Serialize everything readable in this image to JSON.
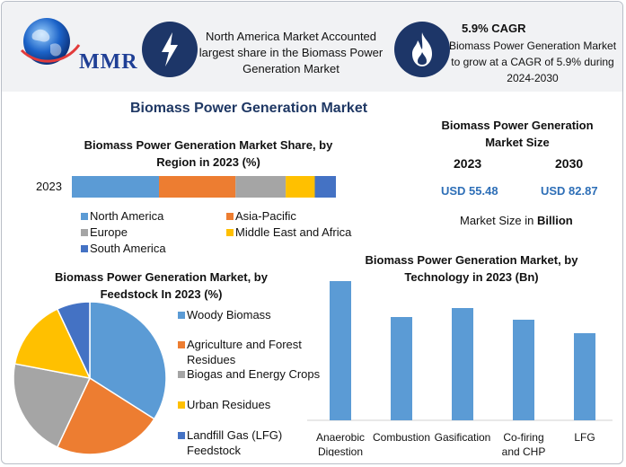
{
  "header": {
    "logo_text": "MMR",
    "highlight_na": "North America Market Accounted largest share in the Biomass Power Generation Market",
    "cagr_title": "5.9% CAGR",
    "cagr_text": "Biomass Power Generation Market to grow at a CAGR of 5.9% during 2024-2030",
    "icons": [
      "globe-icon",
      "lightning-bolt-icon",
      "flame-icon"
    ]
  },
  "main_title": "Biomass Power Generation Market",
  "market_size": {
    "title": "Biomass Power Generation Market Size",
    "year_a": "2023",
    "year_b": "2030",
    "value_a": "USD 55.48",
    "value_b": "USD 82.87",
    "unit_prefix": "Market Size in",
    "unit_bold": "Billion",
    "value_color": "#2e6fb7"
  },
  "chart_data": [
    {
      "type": "bar",
      "orientation": "horizontal-stacked",
      "title": "Biomass Power Generation Market Share, by Region in 2023 (%)",
      "categories": [
        "2023"
      ],
      "series": [
        {
          "name": "North America",
          "values": [
            33
          ],
          "color": "#5b9bd5"
        },
        {
          "name": "Asia-Pacific",
          "values": [
            29
          ],
          "color": "#ed7d31"
        },
        {
          "name": "Europe",
          "values": [
            19
          ],
          "color": "#a5a5a5"
        },
        {
          "name": "Middle East and Africa",
          "values": [
            11
          ],
          "color": "#ffc000"
        },
        {
          "name": "South America",
          "values": [
            8
          ],
          "color": "#4472c4"
        }
      ],
      "legend": "bottom"
    },
    {
      "type": "pie",
      "title": "Biomass Power Generation Market, by Feedstock In 2023 (%)",
      "labels": [
        "Woody Biomass",
        "Agriculture and Forest Residues",
        "Biogas and Energy Crops",
        "Urban Residues",
        "Landfill Gas (LFG) Feedstock"
      ],
      "values": [
        34,
        23,
        21,
        15,
        7
      ],
      "colors": [
        "#5b9bd5",
        "#ed7d31",
        "#a5a5a5",
        "#ffc000",
        "#4472c4"
      ],
      "legend": "right"
    },
    {
      "type": "bar",
      "title": "Biomass Power Generation Market, by Technology in 2023 (Bn)",
      "categories": [
        "Anaerobic Digestion",
        "Combustion",
        "Gasification",
        "Co-firing and CHP",
        "LFG"
      ],
      "values": [
        15.5,
        11.5,
        12.5,
        11.2,
        9.7
      ],
      "ylim": [
        0,
        16
      ],
      "color": "#5b9bd5",
      "grid": false
    }
  ]
}
